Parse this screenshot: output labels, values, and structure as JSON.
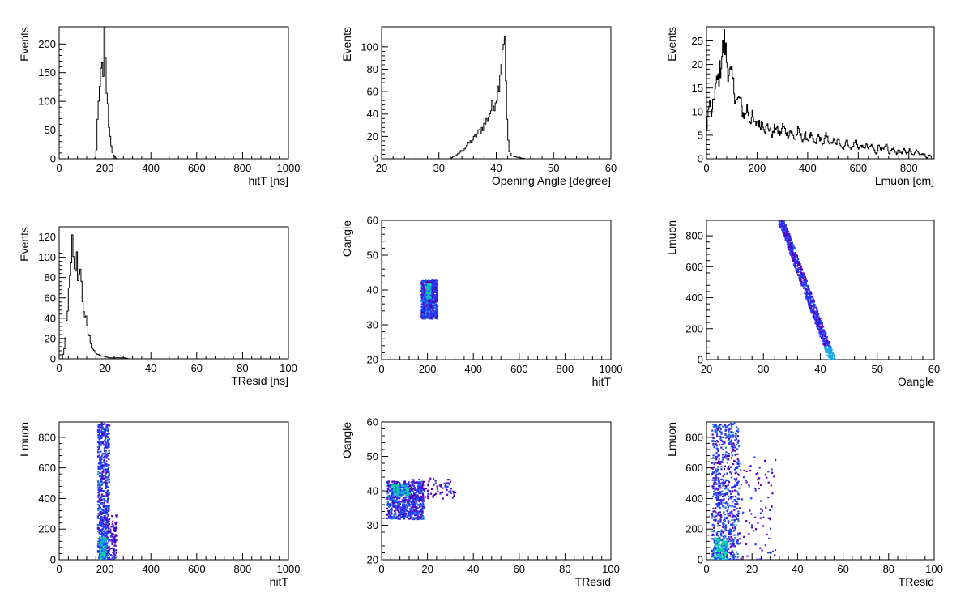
{
  "chart_data": [
    {
      "type": "histogram",
      "xlabel": "hitT [ns]",
      "ylabel": "Events",
      "xlim": [
        0,
        1000
      ],
      "ylim": [
        0,
        230
      ],
      "xticks": [
        "0",
        "200",
        "400",
        "600",
        "800",
        "1000"
      ],
      "yticks": [
        "0",
        "50",
        "100",
        "150",
        "200"
      ],
      "bin_width": 5,
      "bins": [
        [
          150,
          0
        ],
        [
          155,
          2
        ],
        [
          160,
          15
        ],
        [
          165,
          60
        ],
        [
          170,
          95
        ],
        [
          175,
          120
        ],
        [
          180,
          175
        ],
        [
          185,
          150
        ],
        [
          190,
          135
        ],
        [
          195,
          210
        ],
        [
          200,
          165
        ],
        [
          205,
          120
        ],
        [
          210,
          88
        ],
        [
          215,
          60
        ],
        [
          220,
          38
        ],
        [
          225,
          24
        ],
        [
          230,
          12
        ],
        [
          235,
          6
        ],
        [
          240,
          3
        ],
        [
          245,
          1
        ],
        [
          250,
          0
        ]
      ]
    },
    {
      "type": "histogram",
      "xlabel": "Opening Angle [degree]",
      "ylabel": "Events",
      "xlim": [
        20,
        60
      ],
      "ylim": [
        0,
        118
      ],
      "xticks": [
        "20",
        "30",
        "40",
        "50",
        "60"
      ],
      "yticks": [
        "0",
        "20",
        "40",
        "60",
        "80",
        "100"
      ],
      "bin_width": 0.2,
      "bins": [
        [
          32,
          0
        ],
        [
          32.4,
          2
        ],
        [
          33,
          3
        ],
        [
          33.6,
          6
        ],
        [
          34.2,
          8
        ],
        [
          34.8,
          12
        ],
        [
          35.4,
          15
        ],
        [
          36,
          18
        ],
        [
          36.6,
          22
        ],
        [
          37.2,
          26
        ],
        [
          37.8,
          30
        ],
        [
          38.4,
          36
        ],
        [
          39,
          44
        ],
        [
          39.6,
          50
        ],
        [
          40.2,
          62
        ],
        [
          40.6,
          80
        ],
        [
          41,
          100
        ],
        [
          41.2,
          112
        ],
        [
          41.4,
          100
        ],
        [
          41.6,
          70
        ],
        [
          41.8,
          35
        ],
        [
          42,
          15
        ],
        [
          42.2,
          6
        ],
        [
          42.6,
          3
        ],
        [
          43,
          2
        ],
        [
          44,
          1
        ],
        [
          45,
          0
        ]
      ]
    },
    {
      "type": "histogram",
      "xlabel": "Lmuon [cm]",
      "ylabel": "Events",
      "xlim": [
        0,
        900
      ],
      "ylim": [
        0,
        28
      ],
      "xticks": [
        "0",
        "200",
        "400",
        "600",
        "800"
      ],
      "yticks": [
        "0",
        "5",
        "10",
        "15",
        "20",
        "25"
      ],
      "bin_width": 3,
      "bins": [
        [
          0,
          7
        ],
        [
          10,
          12
        ],
        [
          20,
          9
        ],
        [
          30,
          14
        ],
        [
          40,
          16
        ],
        [
          50,
          18
        ],
        [
          60,
          22
        ],
        [
          70,
          25
        ],
        [
          80,
          20
        ],
        [
          90,
          18
        ],
        [
          100,
          17
        ],
        [
          110,
          14
        ],
        [
          120,
          12
        ],
        [
          130,
          13
        ],
        [
          140,
          10
        ],
        [
          150,
          9
        ],
        [
          160,
          11
        ],
        [
          170,
          8
        ],
        [
          180,
          9
        ],
        [
          190,
          7
        ],
        [
          200,
          8
        ],
        [
          210,
          7
        ],
        [
          220,
          8
        ],
        [
          230,
          6
        ],
        [
          240,
          7
        ],
        [
          250,
          6
        ],
        [
          260,
          5
        ],
        [
          270,
          7
        ],
        [
          280,
          6
        ],
        [
          290,
          5
        ],
        [
          300,
          7
        ],
        [
          310,
          6
        ],
        [
          320,
          5
        ],
        [
          330,
          6
        ],
        [
          340,
          5
        ],
        [
          350,
          4
        ],
        [
          360,
          6
        ],
        [
          370,
          5
        ],
        [
          380,
          4
        ],
        [
          390,
          5
        ],
        [
          400,
          4
        ],
        [
          410,
          5
        ],
        [
          420,
          4
        ],
        [
          430,
          3
        ],
        [
          440,
          5
        ],
        [
          450,
          4
        ],
        [
          460,
          3
        ],
        [
          470,
          5
        ],
        [
          480,
          4
        ],
        [
          490,
          3
        ],
        [
          500,
          4
        ],
        [
          510,
          3
        ],
        [
          520,
          4
        ],
        [
          530,
          3
        ],
        [
          540,
          2
        ],
        [
          550,
          4
        ],
        [
          560,
          3
        ],
        [
          570,
          2
        ],
        [
          580,
          3
        ],
        [
          590,
          4
        ],
        [
          600,
          2
        ],
        [
          610,
          3
        ],
        [
          620,
          2
        ],
        [
          630,
          3
        ],
        [
          640,
          2
        ],
        [
          650,
          3
        ],
        [
          660,
          2
        ],
        [
          670,
          1
        ],
        [
          680,
          3
        ],
        [
          690,
          2
        ],
        [
          700,
          2
        ],
        [
          710,
          3
        ],
        [
          720,
          1
        ],
        [
          730,
          2
        ],
        [
          740,
          2
        ],
        [
          750,
          1
        ],
        [
          760,
          2
        ],
        [
          770,
          1
        ],
        [
          780,
          2
        ],
        [
          790,
          1
        ],
        [
          800,
          2
        ],
        [
          810,
          1
        ],
        [
          820,
          1
        ],
        [
          830,
          2
        ],
        [
          840,
          1
        ],
        [
          850,
          1
        ],
        [
          860,
          1
        ],
        [
          870,
          0
        ],
        [
          880,
          1
        ],
        [
          890,
          0
        ]
      ]
    },
    {
      "type": "histogram",
      "xlabel": "TResid [ns]",
      "ylabel": "Events",
      "xlim": [
        0,
        100
      ],
      "ylim": [
        0,
        130
      ],
      "xticks": [
        "0",
        "20",
        "40",
        "60",
        "80",
        "100"
      ],
      "yticks": [
        "0",
        "20",
        "40",
        "60",
        "80",
        "100",
        "120"
      ],
      "bin_width": 0.5,
      "bins": [
        [
          1,
          0
        ],
        [
          2,
          10
        ],
        [
          3,
          35
        ],
        [
          4,
          75
        ],
        [
          5,
          98
        ],
        [
          5.5,
          125
        ],
        [
          6,
          103
        ],
        [
          7,
          100
        ],
        [
          8,
          88
        ],
        [
          9,
          78
        ],
        [
          10,
          62
        ],
        [
          11,
          45
        ],
        [
          12,
          30
        ],
        [
          13,
          20
        ],
        [
          14,
          12
        ],
        [
          15,
          8
        ],
        [
          16,
          5
        ],
        [
          18,
          3
        ],
        [
          20,
          2
        ],
        [
          22,
          1
        ],
        [
          25,
          1
        ],
        [
          28,
          1
        ],
        [
          30,
          0
        ]
      ]
    },
    {
      "type": "heatmap",
      "xlabel": "hitT",
      "ylabel": "Oangle",
      "xlim": [
        0,
        1000
      ],
      "ylim": [
        20,
        60
      ],
      "xticks": [
        "0",
        "200",
        "400",
        "600",
        "800",
        "1000"
      ],
      "yticks": [
        "20",
        "30",
        "40",
        "50",
        "60"
      ],
      "clusters": [
        {
          "x": [
            170,
            240
          ],
          "y": [
            32,
            43
          ],
          "density": "medium"
        },
        {
          "x": [
            190,
            210
          ],
          "y": [
            38,
            42
          ],
          "density": "high"
        }
      ]
    },
    {
      "type": "heatmap",
      "xlabel": "Oangle",
      "ylabel": "Lmuon",
      "xlim": [
        20,
        60
      ],
      "ylim": [
        0,
        900
      ],
      "xticks": [
        "20",
        "30",
        "40",
        "50",
        "60"
      ],
      "yticks": [
        "0",
        "200",
        "400",
        "600",
        "800"
      ],
      "band": {
        "from": [
          33,
          900
        ],
        "to": [
          42,
          0
        ],
        "width": 1.2
      }
    },
    {
      "type": "heatmap",
      "xlabel": "hitT",
      "ylabel": "Lmuon",
      "xlim": [
        0,
        1000
      ],
      "ylim": [
        0,
        900
      ],
      "xticks": [
        "0",
        "200",
        "400",
        "600",
        "800",
        "1000"
      ],
      "yticks": [
        "0",
        "200",
        "400",
        "600",
        "800"
      ],
      "clusters": [
        {
          "x": [
            165,
            215
          ],
          "y": [
            0,
            900
          ],
          "density": "medium"
        },
        {
          "x": [
            175,
            200
          ],
          "y": [
            0,
            150
          ],
          "density": "high"
        },
        {
          "x": [
            215,
            250
          ],
          "y": [
            0,
            300
          ],
          "density": "low"
        }
      ]
    },
    {
      "type": "heatmap",
      "xlabel": "TResid",
      "ylabel": "Oangle",
      "xlim": [
        0,
        100
      ],
      "ylim": [
        20,
        60
      ],
      "xticks": [
        "0",
        "20",
        "40",
        "60",
        "80",
        "100"
      ],
      "yticks": [
        "20",
        "30",
        "40",
        "50",
        "60"
      ],
      "clusters": [
        {
          "x": [
            2,
            18
          ],
          "y": [
            32,
            43
          ],
          "density": "medium"
        },
        {
          "x": [
            4,
            12
          ],
          "y": [
            39,
            42
          ],
          "density": "high"
        },
        {
          "x": [
            12,
            32
          ],
          "y": [
            38,
            44
          ],
          "density": "low"
        }
      ]
    },
    {
      "type": "heatmap",
      "xlabel": "TResid",
      "ylabel": "Lmuon",
      "xlim": [
        0,
        100
      ],
      "ylim": [
        0,
        900
      ],
      "xticks": [
        "0",
        "20",
        "40",
        "60",
        "80",
        "100"
      ],
      "yticks": [
        "0",
        "200",
        "400",
        "600",
        "800"
      ],
      "clusters": [
        {
          "x": [
            2,
            14
          ],
          "y": [
            0,
            900
          ],
          "density": "medium"
        },
        {
          "x": [
            3,
            9
          ],
          "y": [
            0,
            150
          ],
          "density": "high"
        },
        {
          "x": [
            14,
            30
          ],
          "y": [
            0,
            700
          ],
          "density": "low"
        }
      ]
    }
  ],
  "colors": {
    "line": "#000000",
    "heat_low": "#5a00b4",
    "heat_mid": "#1e3cff",
    "heat_high": "#00d6a0"
  }
}
